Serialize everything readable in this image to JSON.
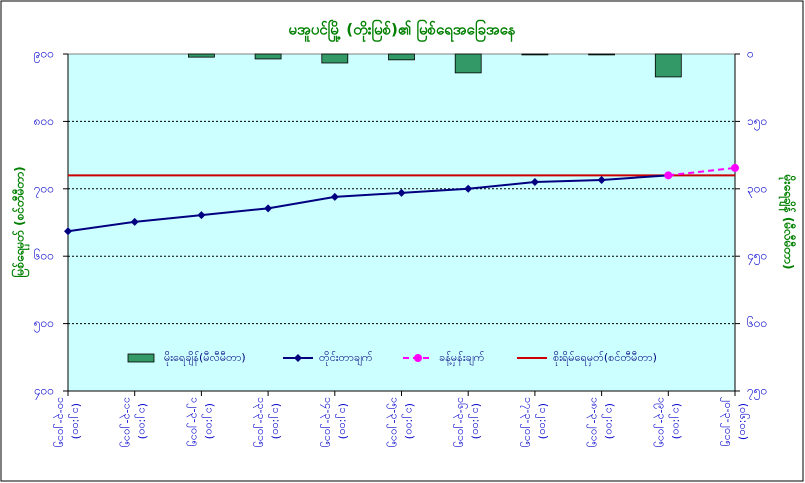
{
  "chart_data": {
    "type": "combo",
    "title": "မအူပင်မြို့ (တိုးမြစ်)၏ မြစ်ရေအခြေအနေ",
    "ylabel": "မြစ်ရေမှတ် (စင်တီမီတာ)",
    "y2label": "မိုးရေချိန် (မီလီမီတာ)",
    "categories": [
      "၁၀-၃-၂၀၁၅",
      "၁၁-၃-၂၀၁၅",
      "၁၂-၃-၂၀၁၅",
      "၁၃-၃-၂၀၁၅",
      "၁၄-၃-၂၀၁၅",
      "၁၅-၃-၂၀၁၅",
      "၁၆-၃-၂၀၁၅",
      "၁၇-၃-၂၀၁၅",
      "၁၈-၃-၂၀၁၅",
      "၁၉-၃-၂၀၁၅",
      "၂၀-၃-၂၀၁၅"
    ],
    "category_times": [
      "(၁၂:၀၀)",
      "(၁၂:၀၀)",
      "(၁၂:၀၀)",
      "(၁၂:၀၀)",
      "(၁၂:၀၀)",
      "(၁၂:၀၀)",
      "(၁၂:၀၀)",
      "(၁၂:၀၀)",
      "(၁၂:၀၀)",
      "(၁၂:၀၀)",
      "(၀၆:၀၀)"
    ],
    "series": [
      {
        "name": "မိုးရေချိန်(မီလီမီတာ)",
        "type": "bar",
        "axis": "y2",
        "color": "#339966",
        "values": [
          0,
          0,
          7,
          11,
          20,
          13,
          42,
          2,
          2,
          51,
          null
        ]
      },
      {
        "name": "တိုင်းတာချက်",
        "type": "line",
        "color": "#000080",
        "dash": false,
        "marker": "diamond",
        "values": [
          637,
          651,
          661,
          671,
          688,
          694,
          700,
          710,
          713,
          720,
          null
        ]
      },
      {
        "name": "ခန့်မှန်းချက်",
        "type": "line",
        "color": "#ff00ff",
        "dash": true,
        "marker": "circle",
        "values": [
          null,
          null,
          null,
          null,
          null,
          null,
          null,
          null,
          null,
          720,
          731
        ]
      }
    ],
    "reference_line": {
      "name": "စိုးရိမ်ရေမှတ်(စင်တီမီတာ)",
      "value": 720,
      "color": "#cc0000"
    },
    "ylim": [
      400,
      900
    ],
    "yticks": [
      {
        "value": 400,
        "label": "၄၀၀"
      },
      {
        "value": 500,
        "label": "၅၀၀"
      },
      {
        "value": 600,
        "label": "၆၀၀"
      },
      {
        "value": 700,
        "label": "၇၀၀"
      },
      {
        "value": 800,
        "label": "၈၀၀"
      },
      {
        "value": 900,
        "label": "၉၀၀"
      }
    ],
    "y2lim": [
      0,
      750
    ],
    "y2_reversed": true,
    "y2ticks": [
      {
        "value": 0,
        "label": "၀"
      },
      {
        "value": 150,
        "label": "၁၅၀"
      },
      {
        "value": 300,
        "label": "၃၀၀"
      },
      {
        "value": 450,
        "label": "၄၅၀"
      },
      {
        "value": 600,
        "label": "၆၀၀"
      },
      {
        "value": 750,
        "label": "၇၅၀"
      }
    ],
    "grid": true,
    "legend": "bottom"
  }
}
